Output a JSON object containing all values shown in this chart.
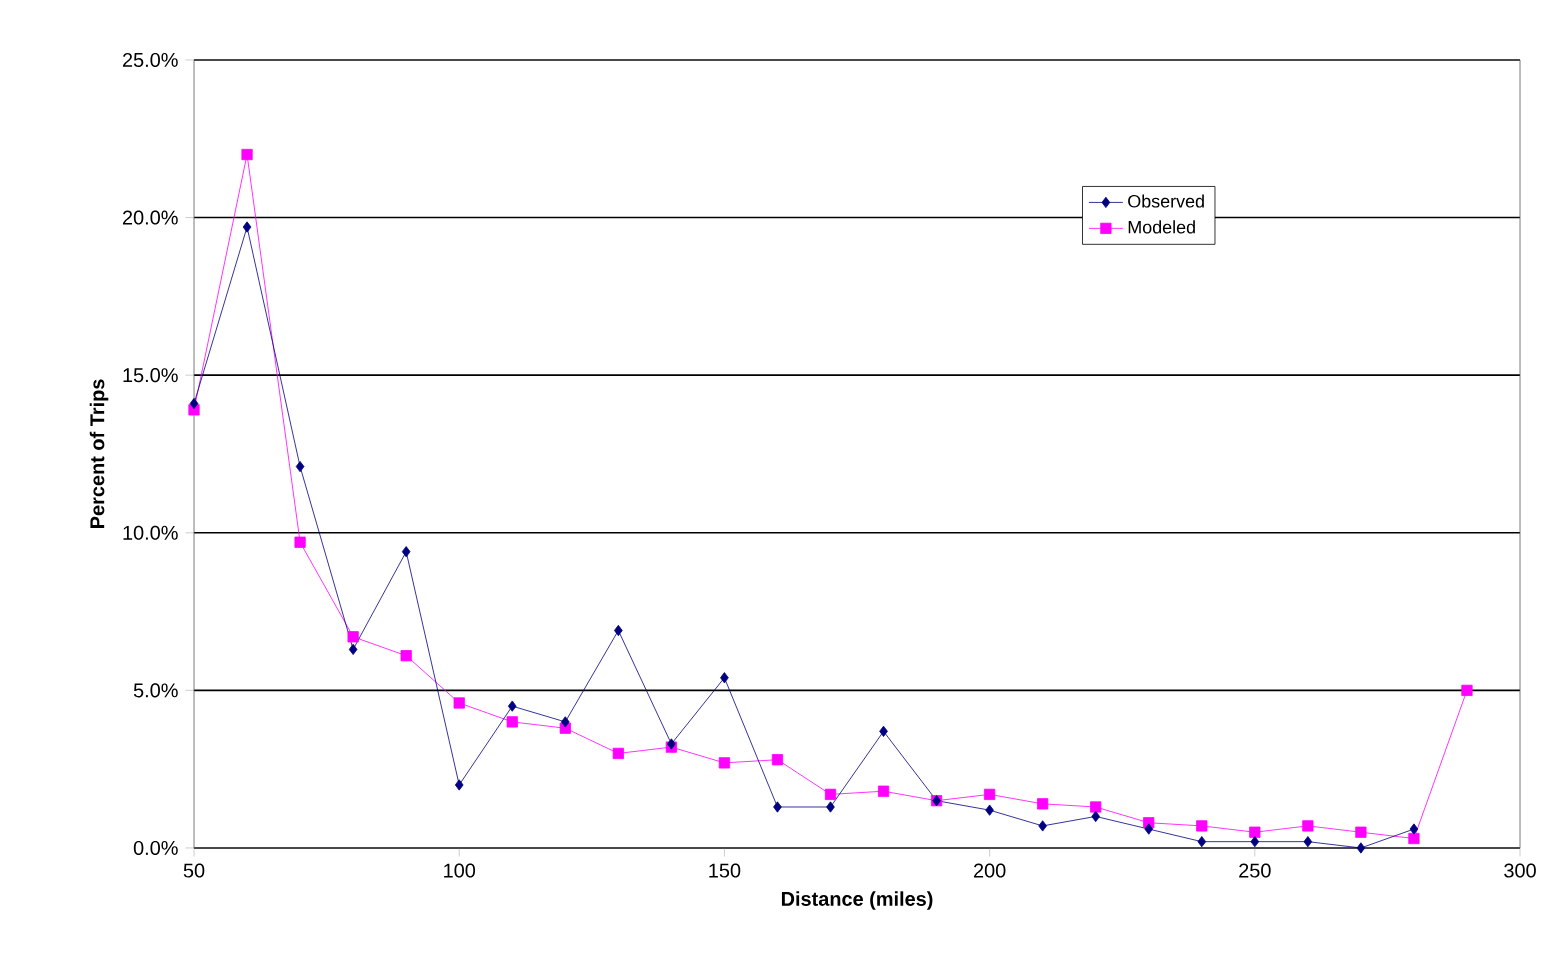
{
  "chart_data": {
    "type": "line",
    "xlabel": "Distance (miles)",
    "ylabel": "Percent of Trips",
    "xlim": [
      50,
      300
    ],
    "xticks": [
      50,
      100,
      150,
      200,
      250,
      300
    ],
    "ylim": [
      0,
      25
    ],
    "yticks": [
      {
        "value": 0,
        "label": "0.0%"
      },
      {
        "value": 5,
        "label": "5.0%"
      },
      {
        "value": 10,
        "label": "10.0%"
      },
      {
        "value": 15,
        "label": "15.0%"
      },
      {
        "value": 20,
        "label": "20.0%"
      },
      {
        "value": 25,
        "label": "25.0%"
      }
    ],
    "grid": "y",
    "legend": "top right",
    "series": [
      {
        "name": "Observed",
        "color": "#000080",
        "marker": "diamond",
        "x": [
          50,
          60,
          70,
          80,
          90,
          100,
          110,
          120,
          130,
          140,
          150,
          160,
          170,
          180,
          190,
          200,
          210,
          220,
          230,
          240,
          250,
          260,
          270,
          280
        ],
        "values": [
          14.1,
          19.7,
          12.1,
          6.3,
          9.4,
          2.0,
          4.5,
          4.0,
          6.9,
          3.3,
          5.4,
          1.3,
          1.3,
          3.7,
          1.5,
          1.2,
          0.7,
          1.0,
          0.6,
          0.2,
          0.2,
          0.2,
          0.0,
          0.6
        ]
      },
      {
        "name": "Modeled",
        "color": "#ff00ff",
        "marker": "square",
        "x": [
          50,
          60,
          70,
          80,
          90,
          100,
          110,
          120,
          130,
          140,
          150,
          160,
          170,
          180,
          190,
          200,
          210,
          220,
          230,
          240,
          250,
          260,
          270,
          280,
          290
        ],
        "values": [
          13.9,
          22.0,
          9.7,
          6.7,
          6.1,
          4.6,
          4.0,
          3.8,
          3.0,
          3.2,
          2.7,
          2.8,
          1.7,
          1.8,
          1.5,
          1.7,
          1.4,
          1.3,
          0.8,
          0.7,
          0.5,
          0.7,
          0.5,
          0.3,
          5.0
        ]
      }
    ]
  }
}
